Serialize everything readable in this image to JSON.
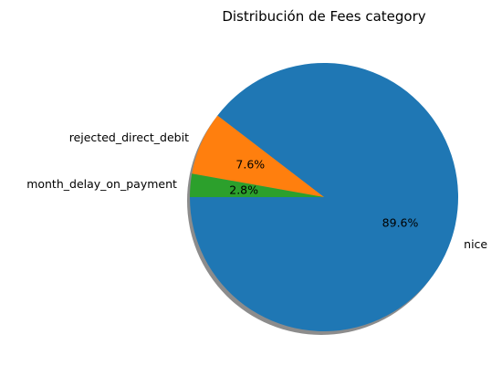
{
  "chart_data": {
    "type": "pie",
    "title": "Distribución de Fees category",
    "slices": [
      {
        "label": "nice",
        "value": 89.6,
        "pct_label": "89.6%",
        "color": "#1f77b4"
      },
      {
        "label": "rejected_direct_debit",
        "value": 7.6,
        "pct_label": "7.6%",
        "color": "#ff7f0e"
      },
      {
        "label": "month_delay_on_payment",
        "value": 2.8,
        "pct_label": "2.8%",
        "color": "#2ca02c"
      }
    ],
    "start_angle": 180,
    "shadow": true,
    "legend": "none"
  }
}
